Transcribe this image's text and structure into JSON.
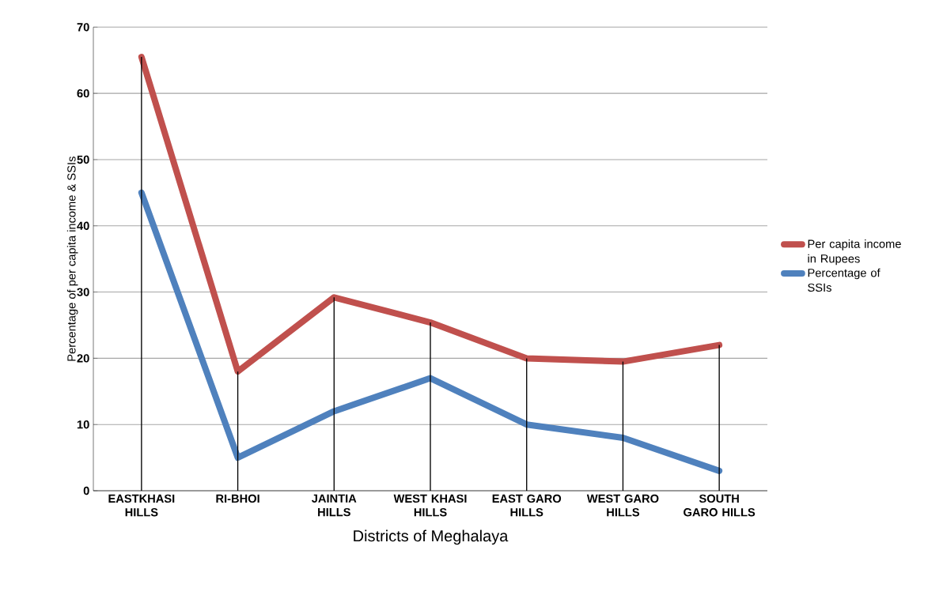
{
  "chart_data": {
    "type": "line",
    "xlabel": "Districts of Meghalaya",
    "ylabel": "Percentage of per capita income & SSIs",
    "categories": [
      "EASTKHASI HILLS",
      "RI-BHOI",
      "JAINTIA HILLS",
      "WEST KHASI HILLS",
      "EAST GARO HILLS",
      "WEST GARO HILLS",
      "SOUTH GARO HILLS"
    ],
    "series": [
      {
        "name": "Per capita income in Rupees",
        "color": "#c0504d",
        "values": [
          65.5,
          18,
          29.2,
          25.4,
          20,
          19.5,
          22
        ]
      },
      {
        "name": "Percentage of SSIs",
        "color": "#4f81bd",
        "values": [
          45,
          5,
          12,
          17,
          10,
          8,
          3
        ]
      },
      {
        "type": "bar",
        "color": "#000000",
        "values": [
          65.5,
          18,
          29.2,
          25.4,
          20,
          19.5,
          22
        ]
      }
    ],
    "ylim": [
      0,
      70
    ],
    "yticks": [
      0,
      10,
      20,
      30,
      40,
      50,
      60,
      70
    ],
    "grid": "y",
    "legend": "right",
    "marker": "none",
    "line_style": "solid"
  }
}
